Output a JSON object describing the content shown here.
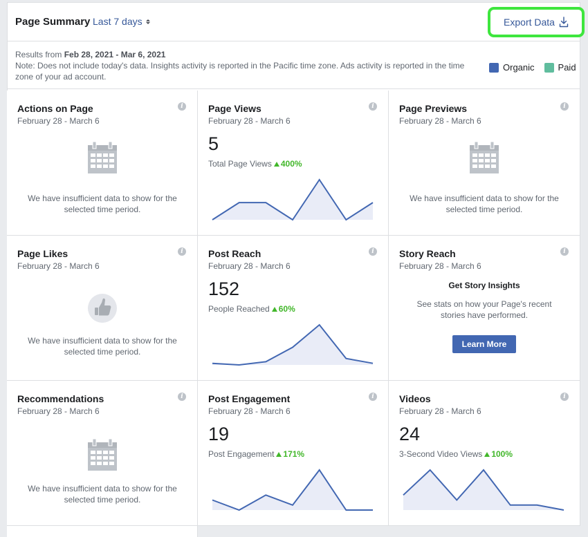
{
  "header": {
    "title": "Page Summary",
    "range_label": "Last 7 days",
    "export_label": "Export Data"
  },
  "info": {
    "results_prefix": "Results from",
    "results_range": "Feb 28, 2021 - Mar 6, 2021",
    "note": "Note: Does not include today's data. Insights activity is reported in the Pacific time zone. Ads activity is reported in the time zone of your ad account."
  },
  "legend": {
    "organic": {
      "label": "Organic",
      "color": "#4267b2"
    },
    "paid": {
      "label": "Paid",
      "color": "#60bd9e"
    }
  },
  "insufficient_message": "We have insufficient data to show for the selected time period.",
  "cards": {
    "actions": {
      "title": "Actions on Page",
      "date": "February 28 - March 6",
      "icon": "calendar-icon"
    },
    "page_views": {
      "title": "Page Views",
      "date": "February 28 - March 6",
      "value": "5",
      "metric": "Total Page Views",
      "change": "400%",
      "spark": [
        1,
        4,
        4,
        1,
        8,
        1,
        4
      ]
    },
    "page_previews": {
      "title": "Page Previews",
      "date": "February 28 - March 6",
      "icon": "calendar-icon"
    },
    "page_likes": {
      "title": "Page Likes",
      "date": "February 28 - March 6",
      "icon": "thumbs-up-icon"
    },
    "post_reach": {
      "title": "Post Reach",
      "date": "February 28 - March 6",
      "value": "152",
      "metric": "People Reached",
      "change": "60%",
      "spark": [
        10,
        9,
        11,
        20,
        34,
        13,
        10
      ]
    },
    "story_reach": {
      "title": "Story Reach",
      "date": "February 28 - March 6",
      "heading": "Get Story Insights",
      "body": "See stats on how your Page's recent stories have performed.",
      "button": "Learn More"
    },
    "recommendations": {
      "title": "Recommendations",
      "date": "February 28 - March 6",
      "icon": "calendar-icon"
    },
    "post_engagement": {
      "title": "Post Engagement",
      "date": "February 28 - March 6",
      "value": "19",
      "metric": "Post Engagement",
      "change": "171%",
      "spark": [
        2,
        0,
        3,
        1,
        8,
        0,
        0
      ]
    },
    "videos": {
      "title": "Videos",
      "date": "February 28 - March 6",
      "value": "24",
      "metric": "3-Second Video Views",
      "change": "100%",
      "spark": [
        3,
        8,
        2,
        8,
        1,
        1,
        0
      ]
    }
  }
}
